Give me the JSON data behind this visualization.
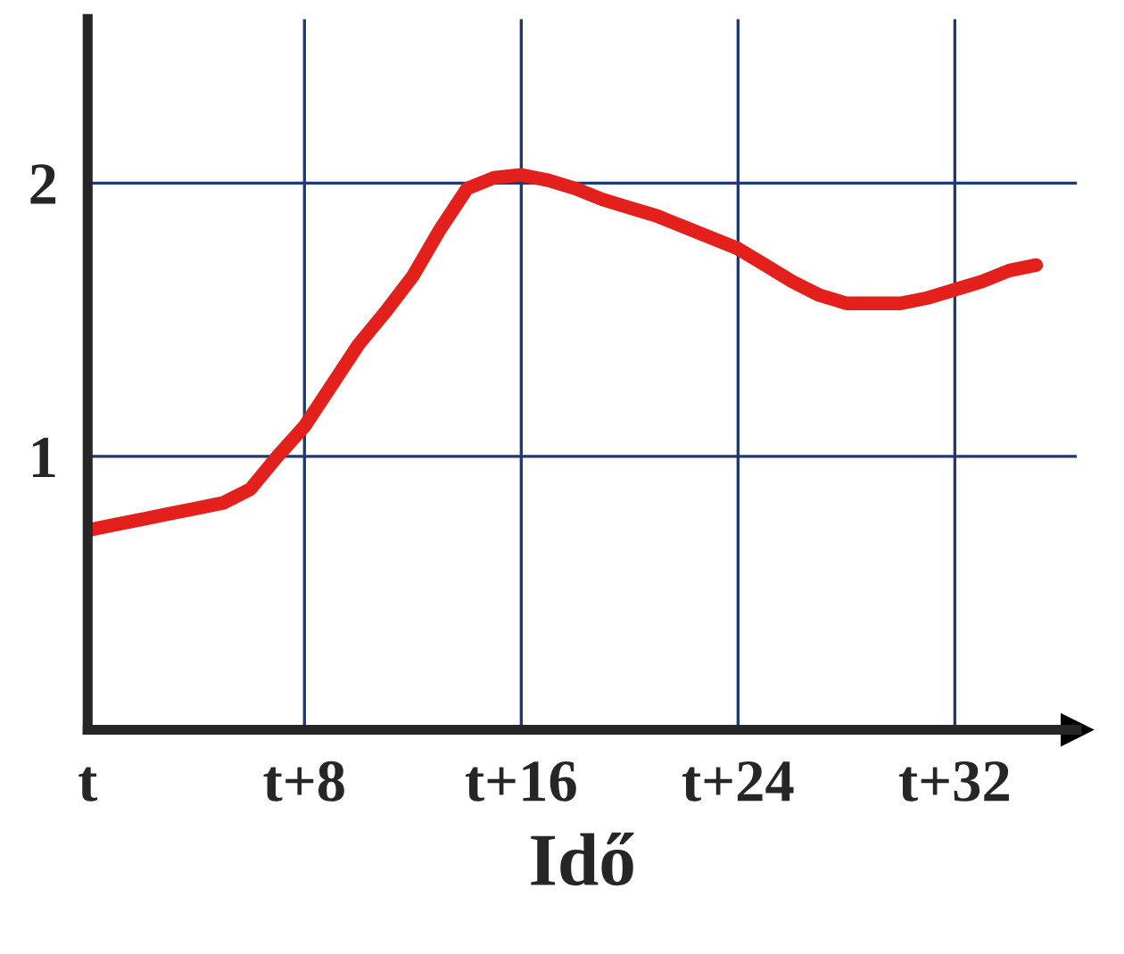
{
  "chart_data": {
    "type": "line",
    "xlabel": "Idő",
    "categories": [
      "t",
      null,
      null,
      null,
      null,
      null,
      null,
      null,
      "t+8",
      null,
      null,
      null,
      null,
      null,
      null,
      null,
      "t+16",
      null,
      null,
      null,
      null,
      null,
      null,
      null,
      "t+24",
      null,
      null,
      null,
      null,
      null,
      null,
      null,
      "t+32",
      null,
      null,
      null
    ],
    "series": [
      {
        "color": "#e3201b",
        "values": [
          0.73,
          0.75,
          0.77,
          0.79,
          0.81,
          0.83,
          0.88,
          1.0,
          1.11,
          1.26,
          1.41,
          1.53,
          1.66,
          1.83,
          1.98,
          2.02,
          2.03,
          2.01,
          1.98,
          1.94,
          1.91,
          1.88,
          1.84,
          1.8,
          1.76,
          1.7,
          1.64,
          1.59,
          1.56,
          1.56,
          1.56,
          1.58,
          1.61,
          1.64,
          1.68,
          1.7
        ]
      }
    ],
    "ylim": [
      0,
      2.6
    ],
    "yticks": [
      1,
      2
    ],
    "grid": true,
    "marker": "none",
    "line_style": "solid"
  }
}
